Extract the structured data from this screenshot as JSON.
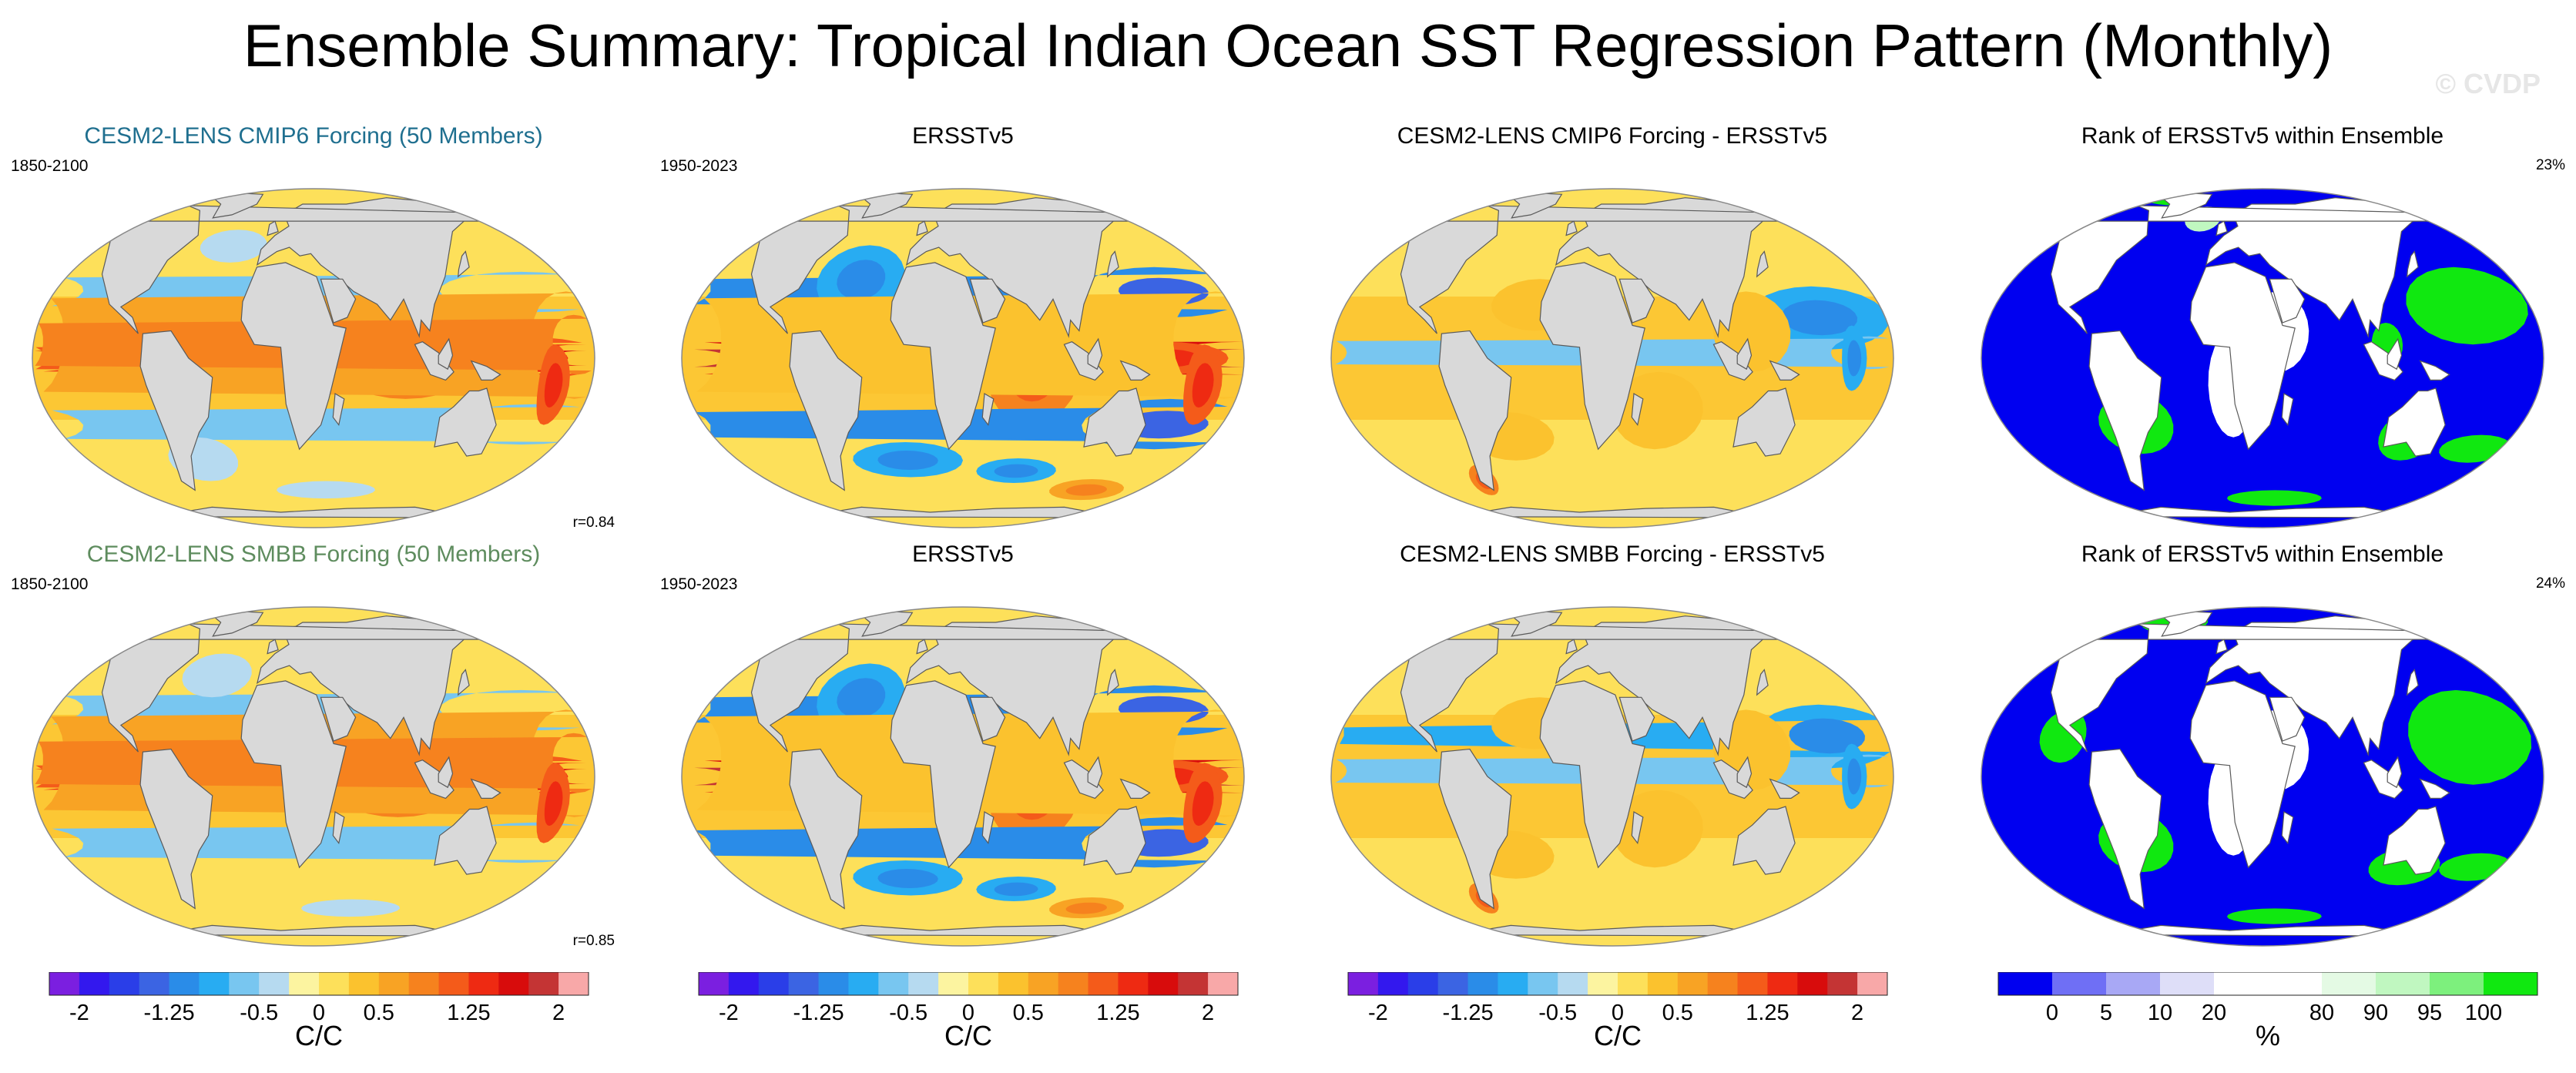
{
  "title": "Ensemble Summary: Tropical Indian Ocean SST Regression Pattern (Monthly)",
  "watermark": "© CVDP",
  "rows": [
    {
      "model": {
        "title": "CESM2-LENS CMIP6 Forcing (50 Members)",
        "title_color": "#1f6f8f",
        "period": "1850-2100",
        "correlation": "r=0.84"
      },
      "obs": {
        "title": "ERSSTv5",
        "period": "1950-2023"
      },
      "diff": {
        "title": "CESM2-LENS CMIP6 Forcing - ERSSTv5"
      },
      "rank": {
        "title": "Rank of ERSSTv5 within Ensemble",
        "percent": "23%"
      }
    },
    {
      "model": {
        "title": "CESM2-LENS SMBB Forcing (50 Members)",
        "title_color": "#5e8c5e",
        "period": "1850-2100",
        "correlation": "r=0.85"
      },
      "obs": {
        "title": "ERSSTv5",
        "period": "1950-2023"
      },
      "diff": {
        "title": "CESM2-LENS SMBB Forcing - ERSSTv5"
      },
      "rank": {
        "title": "Rank of ERSSTv5 within Ensemble",
        "percent": "24%"
      }
    }
  ],
  "colorbars": {
    "regression": {
      "colors": [
        "#7b1fe0",
        "#3318ee",
        "#2a3ee8",
        "#3b64e3",
        "#2a8ce8",
        "#28acf2",
        "#78c6f0",
        "#b6daf0",
        "#fcf4a0",
        "#fde05a",
        "#fbc22e",
        "#f8a324",
        "#f6821e",
        "#f45b1a",
        "#ee2a12",
        "#d80c0c",
        "#c43434",
        "#f8a8a8"
      ],
      "tick_labels": [
        "-2",
        "-1.25",
        "-0.5",
        "0",
        "0.5",
        "1.25",
        "2"
      ],
      "tick_positions": [
        1,
        4,
        7,
        9,
        11,
        14,
        17
      ],
      "units": "C/C"
    },
    "rank": {
      "colors": [
        "#0000f0",
        "#6f6ff5",
        "#a8a8f5",
        "#dedef8",
        "#ffffff",
        "#ffffff",
        "#e4fae4",
        "#c0f7c0",
        "#7df07d",
        "#10e810"
      ],
      "tick_labels": [
        "0",
        "5",
        "10",
        "20",
        "80",
        "90",
        "95",
        "100"
      ],
      "tick_positions": [
        1,
        2,
        3,
        4,
        6,
        7,
        8,
        9
      ],
      "units": "%"
    }
  },
  "map_colors": {
    "land": "#d9d9d9",
    "coast": "#5a5a5a",
    "ocean_neutral": "#fde05a"
  },
  "maps": {
    "model-0": [
      {
        "lon": 90,
        "lat": -5,
        "rx": 40,
        "ry": 10,
        "level": 4
      },
      {
        "lon": 160,
        "lat": 0,
        "rx": 60,
        "ry": 8,
        "level": 5
      },
      {
        "lon": 205,
        "lat": 0,
        "rx": 45,
        "ry": 5,
        "level": 6
      },
      {
        "lon": 175,
        "lat": 25,
        "rx": 60,
        "ry": 8,
        "level": -2
      },
      {
        "lon": 175,
        "lat": -25,
        "rx": 60,
        "ry": 8,
        "level": -2
      },
      {
        "lon": -50,
        "lat": -40,
        "rx": 25,
        "ry": 10,
        "level": -1
      },
      {
        "lon": -30,
        "lat": 45,
        "rx": 25,
        "ry": 8,
        "level": -1
      },
      {
        "lon": -20,
        "lat": 5,
        "rx": 25,
        "ry": 15,
        "level": 3
      },
      {
        "lon": 40,
        "lat": -55,
        "rx": 40,
        "ry": 5,
        "level": -1
      },
      {
        "lon": -160,
        "lat": 5,
        "rx": 30,
        "ry": 20,
        "level": 3
      },
      {
        "lon": -175,
        "lat": -10,
        "rx": 10,
        "ry": 15,
        "level": 5
      }
    ],
    "obs-0": [
      {
        "lon": 75,
        "lat": -5,
        "rx": 30,
        "ry": 20,
        "level": 4
      },
      {
        "lon": 210,
        "lat": 0,
        "rx": 55,
        "ry": 6,
        "level": 7
      },
      {
        "lon": 160,
        "lat": 0,
        "rx": 40,
        "ry": 6,
        "level": 5
      },
      {
        "lon": 165,
        "lat": 25,
        "rx": 55,
        "ry": 10,
        "level": -4
      },
      {
        "lon": 165,
        "lat": -25,
        "rx": 55,
        "ry": 10,
        "level": -4
      },
      {
        "lon": -40,
        "lat": 30,
        "rx": 30,
        "ry": 15,
        "level": -3
      },
      {
        "lon": -10,
        "lat": -40,
        "rx": 40,
        "ry": 8,
        "level": -3
      },
      {
        "lon": 70,
        "lat": -45,
        "rx": 30,
        "ry": 6,
        "level": -3
      },
      {
        "lon": -160,
        "lat": 5,
        "rx": 35,
        "ry": 20,
        "level": 2
      },
      {
        "lon": -175,
        "lat": -10,
        "rx": 12,
        "ry": 15,
        "level": 5
      },
      {
        "lon": 130,
        "lat": -55,
        "rx": 30,
        "ry": 6,
        "level": 3
      }
    ],
    "diff-0": [
      {
        "lon": 165,
        "lat": 15,
        "rx": 45,
        "ry": 12,
        "level": -3
      },
      {
        "lon": 195,
        "lat": 2,
        "rx": 25,
        "ry": 6,
        "level": -2
      },
      {
        "lon": 60,
        "lat": -20,
        "rx": 30,
        "ry": 15,
        "level": 2
      },
      {
        "lon": -40,
        "lat": -30,
        "rx": 30,
        "ry": 10,
        "level": 2
      },
      {
        "lon": -20,
        "lat": 20,
        "rx": 30,
        "ry": 10,
        "level": 2
      },
      {
        "lon": -70,
        "lat": -50,
        "rx": 10,
        "ry": 8,
        "level": 4
      },
      {
        "lon": 120,
        "lat": 10,
        "rx": 25,
        "ry": 15,
        "level": 2
      },
      {
        "lon": -175,
        "lat": 0,
        "rx": 8,
        "ry": 12,
        "level": -3
      }
    ],
    "model-1": [
      {
        "lon": 85,
        "lat": -5,
        "rx": 40,
        "ry": 10,
        "level": 4
      },
      {
        "lon": 160,
        "lat": 0,
        "rx": 60,
        "ry": 8,
        "level": 5
      },
      {
        "lon": 205,
        "lat": 0,
        "rx": 45,
        "ry": 5,
        "level": 6
      },
      {
        "lon": 175,
        "lat": 25,
        "rx": 60,
        "ry": 8,
        "level": -2
      },
      {
        "lon": 175,
        "lat": -25,
        "rx": 60,
        "ry": 8,
        "level": -2
      },
      {
        "lon": -40,
        "lat": 40,
        "rx": 25,
        "ry": 10,
        "level": -1
      },
      {
        "lon": -20,
        "lat": 5,
        "rx": 25,
        "ry": 15,
        "level": 3
      },
      {
        "lon": 60,
        "lat": -55,
        "rx": 40,
        "ry": 5,
        "level": -1
      },
      {
        "lon": -160,
        "lat": 5,
        "rx": 30,
        "ry": 20,
        "level": 3
      },
      {
        "lon": -175,
        "lat": -10,
        "rx": 10,
        "ry": 15,
        "level": 5
      }
    ],
    "obs-1": [
      {
        "lon": 75,
        "lat": -5,
        "rx": 30,
        "ry": 20,
        "level": 4
      },
      {
        "lon": 210,
        "lat": 0,
        "rx": 55,
        "ry": 6,
        "level": 7
      },
      {
        "lon": 160,
        "lat": 0,
        "rx": 40,
        "ry": 6,
        "level": 5
      },
      {
        "lon": 165,
        "lat": 25,
        "rx": 55,
        "ry": 10,
        "level": -4
      },
      {
        "lon": 165,
        "lat": -25,
        "rx": 55,
        "ry": 10,
        "level": -4
      },
      {
        "lon": -40,
        "lat": 30,
        "rx": 30,
        "ry": 15,
        "level": -3
      },
      {
        "lon": -10,
        "lat": -40,
        "rx": 40,
        "ry": 8,
        "level": -3
      },
      {
        "lon": 70,
        "lat": -45,
        "rx": 30,
        "ry": 6,
        "level": -3
      },
      {
        "lon": -160,
        "lat": 5,
        "rx": 35,
        "ry": 20,
        "level": 2
      },
      {
        "lon": -175,
        "lat": -10,
        "rx": 12,
        "ry": 15,
        "level": 5
      },
      {
        "lon": 130,
        "lat": -55,
        "rx": 30,
        "ry": 6,
        "level": 3
      }
    ],
    "diff-1": [
      {
        "lon": 170,
        "lat": 15,
        "rx": 45,
        "ry": 12,
        "level": -3
      },
      {
        "lon": 195,
        "lat": 2,
        "rx": 25,
        "ry": 6,
        "level": -2
      },
      {
        "lon": 60,
        "lat": -20,
        "rx": 30,
        "ry": 15,
        "level": 2
      },
      {
        "lon": -40,
        "lat": -30,
        "rx": 30,
        "ry": 10,
        "level": 2
      },
      {
        "lon": -20,
        "lat": 20,
        "rx": 30,
        "ry": 10,
        "level": 2
      },
      {
        "lon": -70,
        "lat": -50,
        "rx": 10,
        "ry": 8,
        "level": 4
      },
      {
        "lon": 120,
        "lat": 10,
        "rx": 25,
        "ry": 15,
        "level": 2
      },
      {
        "lon": -175,
        "lat": 0,
        "rx": 8,
        "ry": 12,
        "level": -3
      }
    ]
  },
  "rank_maps": {
    "rank-0": [
      {
        "lon": -50,
        "lat": 75,
        "rx": 30,
        "ry": 6,
        "level": 2
      },
      {
        "lon": 10,
        "lat": -10,
        "rx": 15,
        "ry": 20,
        "level": 0
      },
      {
        "lon": 40,
        "lat": 10,
        "rx": 20,
        "ry": 15,
        "level": 0
      },
      {
        "lon": -55,
        "lat": -25,
        "rx": 25,
        "ry": 12,
        "level": 3
      },
      {
        "lon": 165,
        "lat": 20,
        "rx": 40,
        "ry": 15,
        "level": 3
      },
      {
        "lon": 130,
        "lat": -30,
        "rx": 20,
        "ry": 10,
        "level": 3
      },
      {
        "lon": 180,
        "lat": -35,
        "rx": 25,
        "ry": 6,
        "level": 3
      },
      {
        "lon": 40,
        "lat": -60,
        "rx": 40,
        "ry": 5,
        "level": 2
      },
      {
        "lon": 110,
        "lat": 5,
        "rx": 10,
        "ry": 8,
        "level": 3
      },
      {
        "lon": -20,
        "lat": 60,
        "rx": 15,
        "ry": 8,
        "level": 1
      }
    ],
    "rank-1": [
      {
        "lon": -50,
        "lat": 70,
        "rx": 30,
        "ry": 8,
        "level": 2
      },
      {
        "lon": 10,
        "lat": -10,
        "rx": 15,
        "ry": 20,
        "level": 0
      },
      {
        "lon": 40,
        "lat": 10,
        "rx": 20,
        "ry": 15,
        "level": 0
      },
      {
        "lon": -55,
        "lat": -25,
        "rx": 25,
        "ry": 12,
        "level": 3
      },
      {
        "lon": 165,
        "lat": 15,
        "rx": 40,
        "ry": 18,
        "level": 3
      },
      {
        "lon": 130,
        "lat": -35,
        "rx": 25,
        "ry": 8,
        "level": 3
      },
      {
        "lon": 180,
        "lat": -35,
        "rx": 25,
        "ry": 6,
        "level": 3
      },
      {
        "lon": 40,
        "lat": -60,
        "rx": 40,
        "ry": 5,
        "level": 2
      },
      {
        "lon": -100,
        "lat": 15,
        "rx": 15,
        "ry": 10,
        "level": 3
      }
    ]
  }
}
